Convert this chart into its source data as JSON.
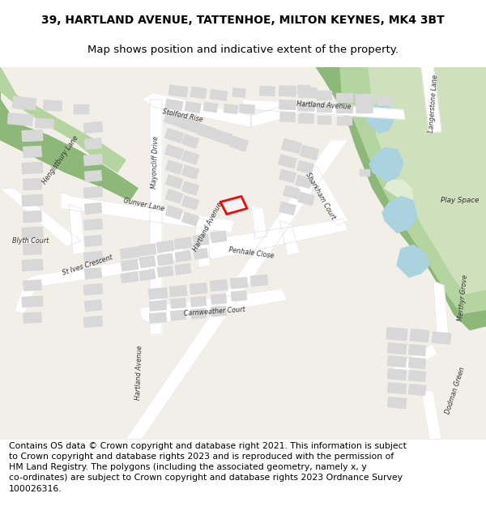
{
  "title_line1": "39, HARTLAND AVENUE, TATTENHOE, MILTON KEYNES, MK4 3BT",
  "title_line2": "Map shows position and indicative extent of the property.",
  "footer_text": "Contains OS data © Crown copyright and database right 2021. This information is subject\nto Crown copyright and database rights 2023 and is reproduced with the permission of\nHM Land Registry. The polygons (including the associated geometry, namely x, y\nco-ordinates) are subject to Crown copyright and database rights 2023 Ordnance Survey\n100026316.",
  "fig_width": 6.0,
  "fig_height": 6.25,
  "bg_color": "#ffffff",
  "map_bg": "#f2efe9",
  "road_color": "#ffffff",
  "building_color": "#d8d8d8",
  "green_dark": "#8db87a",
  "green_mid": "#b4d4a0",
  "green_light": "#cee0bc",
  "water_color": "#aad3df",
  "highlight_color": "#ff0000",
  "text_color": "#333333",
  "title_fontsize": 10.0,
  "subtitle_fontsize": 9.5,
  "footer_fontsize": 7.8,
  "label_fontsize": 5.8
}
